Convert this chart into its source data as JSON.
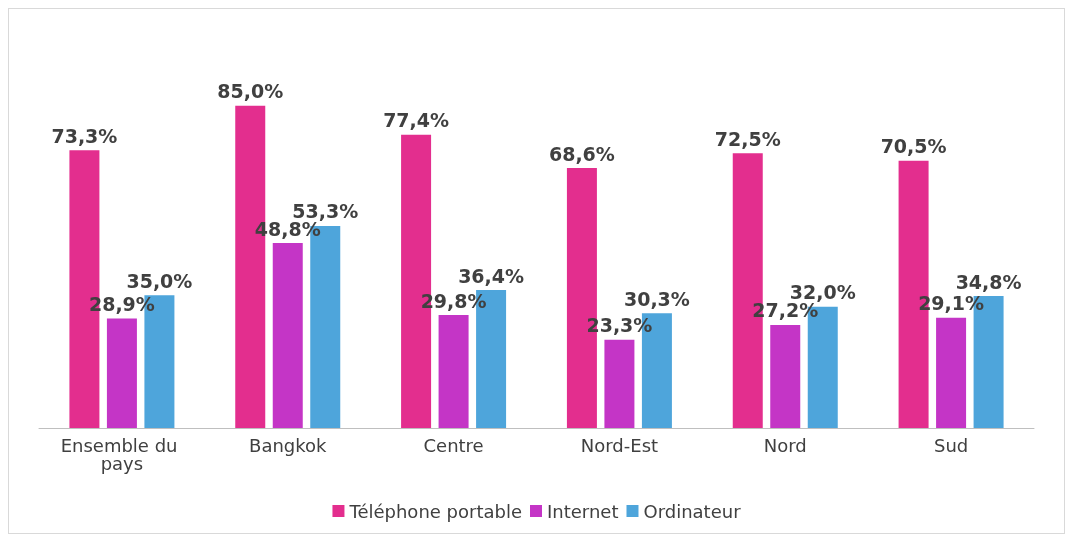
{
  "chart_data": {
    "type": "bar",
    "categories": [
      "Ensemble du pays",
      "Bangkok",
      "Centre",
      "Nord-Est",
      "Nord",
      "Sud"
    ],
    "series": [
      {
        "name": "Téléphone portable",
        "color": "#e32e8e",
        "values": [
          73.3,
          85.0,
          77.4,
          68.6,
          72.5,
          70.5
        ],
        "value_labels": [
          "73,3%",
          "85,0%",
          "77,4%",
          "68,6%",
          "72,5%",
          "70,5%"
        ]
      },
      {
        "name": "Internet",
        "color": "#c435c6",
        "values": [
          28.9,
          48.8,
          29.8,
          23.3,
          27.2,
          29.1
        ],
        "value_labels": [
          "28,9%",
          "48,8%",
          "29,8%",
          "23,3%",
          "27,2%",
          "29,1%"
        ]
      },
      {
        "name": "Ordinateur",
        "color": "#4ea5db",
        "values": [
          35.0,
          53.3,
          36.4,
          30.3,
          32.0,
          34.8
        ],
        "value_labels": [
          "35,0%",
          "53,3%",
          "36,4%",
          "30,3%",
          "32,0%",
          "34,8%"
        ]
      }
    ],
    "legend": "bottom"
  }
}
